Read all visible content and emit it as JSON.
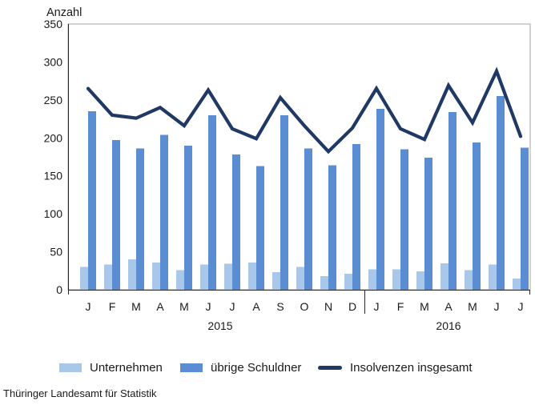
{
  "footer": "Thüringer Landesamt für Statistik",
  "colors": {
    "background": "#FFFFFF",
    "axis": "#262626",
    "plot_border": "#A6A6A6",
    "text": "#1A1A1A"
  },
  "chart_data": {
    "type": "bar",
    "subtype": "grouped-bars-with-line-overlay",
    "ylabel": "Anzahl",
    "xlabel": "",
    "ylim": [
      0,
      350
    ],
    "ytick_step": 50,
    "grid": false,
    "legend_position": "bottom",
    "categories": [
      "J",
      "F",
      "M",
      "A",
      "M",
      "J",
      "J",
      "A",
      "S",
      "O",
      "N",
      "D",
      "J",
      "F",
      "M",
      "A",
      "M",
      "J",
      "J"
    ],
    "year_groups": [
      {
        "label": "2015",
        "from": 0,
        "to": 11
      },
      {
        "label": "2016",
        "from": 12,
        "to": 18
      }
    ],
    "series": [
      {
        "name": "Unternehmen",
        "type": "bar",
        "color": "#A9C7E8",
        "values": [
          30,
          33,
          40,
          36,
          26,
          33,
          34,
          36,
          23,
          30,
          18,
          21,
          27,
          27,
          24,
          35,
          26,
          33,
          15
        ]
      },
      {
        "name": "übrige Schuldner",
        "type": "bar",
        "color": "#5B8DD3",
        "values": [
          235,
          197,
          186,
          204,
          190,
          230,
          178,
          163,
          230,
          186,
          164,
          192,
          238,
          185,
          174,
          234,
          194,
          255,
          187
        ]
      },
      {
        "name": "Insolvenzen insgesamt",
        "type": "line",
        "color": "#1F3864",
        "values": [
          265,
          230,
          226,
          240,
          216,
          263,
          212,
          199,
          253,
          216,
          182,
          213,
          265,
          212,
          198,
          269,
          220,
          288,
          202
        ]
      }
    ]
  }
}
